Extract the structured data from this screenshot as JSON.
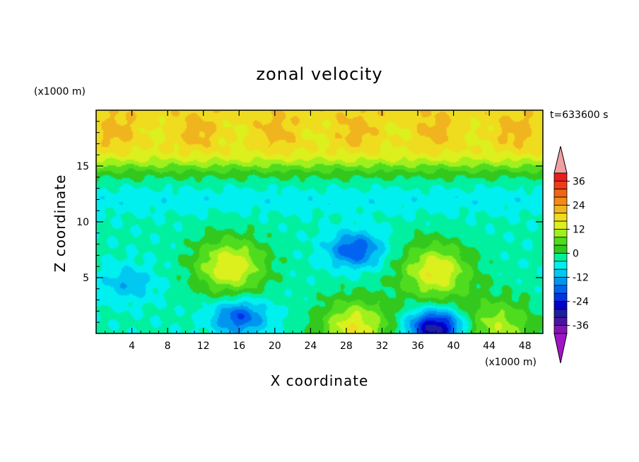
{
  "chart_data": {
    "type": "heatmap",
    "title": "zonal velocity",
    "xlabel": "X coordinate",
    "ylabel": "Z coordinate",
    "x_unit": "(x1000 m)",
    "z_unit": "(x1000 m)",
    "time_label": "t=633600 s",
    "xlim": [
      0,
      50
    ],
    "ylim": [
      0,
      20
    ],
    "x_ticks": [
      4,
      8,
      12,
      16,
      20,
      24,
      28,
      32,
      36,
      40,
      44,
      48
    ],
    "y_ticks": [
      5,
      10,
      15
    ],
    "colorbar": {
      "levels": [
        -36,
        -24,
        -12,
        0,
        12,
        24,
        36
      ],
      "tick_labels": [
        "36",
        "24",
        "12",
        "0",
        "-12",
        "-24",
        "-36"
      ],
      "colors": [
        "#f0a0a0",
        "#e61e1e",
        "#f03c14",
        "#f06414",
        "#f08c14",
        "#f0b41e",
        "#f0dc1e",
        "#dcf01e",
        "#a0f01e",
        "#50dc1e",
        "#32c81e",
        "#00f0a0",
        "#00f0f0",
        "#00c8f0",
        "#0096f0",
        "#0064f0",
        "#0032e6",
        "#0000c8",
        "#1e1ea0",
        "#4b14a0",
        "#8214b4",
        "#a014c8"
      ]
    },
    "features": [
      {
        "kind": "upper jet",
        "x": [
          0,
          50
        ],
        "z": [
          17,
          19.5
        ],
        "u": 18
      },
      {
        "kind": "max",
        "x": 15,
        "z": 6,
        "u": 14
      },
      {
        "kind": "max",
        "x": 38,
        "z": 5.5,
        "u": 14
      },
      {
        "kind": "max",
        "x": 29,
        "z": 0.5,
        "u": 14
      },
      {
        "kind": "max",
        "x": 45,
        "z": 0.5,
        "u": 10
      },
      {
        "kind": "min",
        "x": 38,
        "z": 0.5,
        "u": -28
      },
      {
        "kind": "min",
        "x": 16,
        "z": 1.5,
        "u": -18
      },
      {
        "kind": "min",
        "x": 29,
        "z": 7.5,
        "u": -18
      },
      {
        "kind": "min",
        "x": 3.5,
        "z": 4.5,
        "u": -10
      }
    ]
  }
}
